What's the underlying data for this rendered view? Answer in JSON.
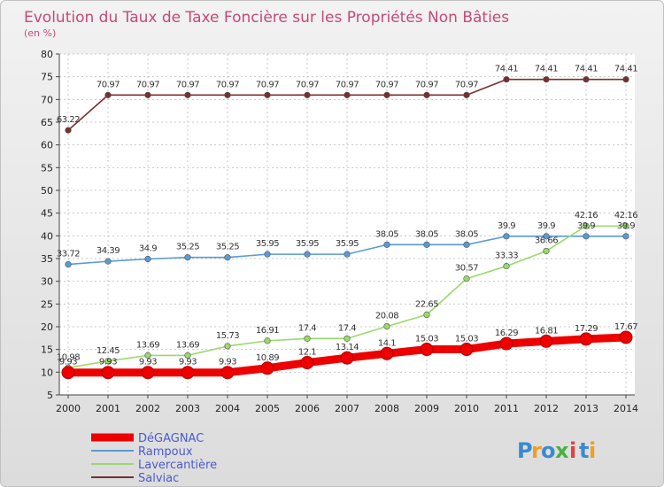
{
  "chart_data": {
    "type": "line",
    "title": "Evolution du Taux de Taxe Foncière sur les Propriétés Non Bâties",
    "subtitle": "(en %)",
    "xlabel": "",
    "ylabel": "",
    "ylim": [
      5,
      80
    ],
    "yticks": [
      "5",
      "10",
      "15",
      "20",
      "25",
      "30",
      "35",
      "40",
      "45",
      "50",
      "55",
      "60",
      "65",
      "70",
      "75",
      "80"
    ],
    "x": [
      "2000",
      "2001",
      "2002",
      "2003",
      "2004",
      "2005",
      "2006",
      "2007",
      "2008",
      "2009",
      "2010",
      "2011",
      "2012",
      "2013",
      "2014"
    ],
    "grid": true,
    "legend_position": "bottom-left",
    "series": [
      {
        "name": "DéGAGNAC",
        "color": "#ee0000",
        "values": [
          9.93,
          9.93,
          9.93,
          9.93,
          9.93,
          10.89,
          12.1,
          13.14,
          14.1,
          15.03,
          15.03,
          16.29,
          16.81,
          17.29,
          17.67
        ],
        "labels": [
          "9.93",
          "9.93",
          "9.93",
          "9.93",
          "9.93",
          "10.89",
          "12.1",
          "13.14",
          "14.1",
          "15.03",
          "15.03",
          "16.29",
          "16.81",
          "17.29",
          "17.67"
        ]
      },
      {
        "name": "Rampoux",
        "color": "#5a9ad5",
        "values": [
          33.72,
          34.39,
          34.9,
          35.25,
          35.25,
          35.95,
          35.95,
          35.95,
          38.05,
          38.05,
          38.05,
          39.9,
          39.9,
          39.9,
          39.9
        ],
        "labels": [
          "33.72",
          "34.39",
          "34.9",
          "35.25",
          "35.25",
          "35.95",
          "35.95",
          "35.95",
          "38.05",
          "38.05",
          "38.05",
          "39.9",
          "39.9",
          "39.9",
          "39.9"
        ]
      },
      {
        "name": "Lavercantière",
        "color": "#99d96a",
        "values": [
          10.98,
          12.45,
          13.69,
          13.69,
          15.73,
          16.91,
          17.4,
          17.4,
          20.08,
          22.65,
          30.57,
          33.33,
          36.66,
          42.16,
          42.16
        ],
        "labels": [
          "10.98",
          "12.45",
          "13.69",
          "13.69",
          "15.73",
          "16.91",
          "17.4",
          "17.4",
          "20.08",
          "22.65",
          "30.57",
          "33.33",
          "36.66",
          "42.16",
          "42.16"
        ]
      },
      {
        "name": "Salviac",
        "color": "#7a2e2e",
        "values": [
          63.22,
          70.97,
          70.97,
          70.97,
          70.97,
          70.97,
          70.97,
          70.97,
          70.97,
          70.97,
          70.97,
          74.41,
          74.41,
          74.41,
          74.41
        ],
        "labels": [
          "63.22",
          "70.97",
          "70.97",
          "70.97",
          "70.97",
          "70.97",
          "70.97",
          "70.97",
          "70.97",
          "70.97",
          "70.97",
          "74.41",
          "74.41",
          "74.41",
          "74.41"
        ]
      }
    ]
  },
  "logo": {
    "letters": [
      "P",
      "r",
      "o",
      "x",
      "i",
      "t",
      "i"
    ],
    "colors": [
      "#3a8ad0",
      "#f0a020",
      "#3a8ad0",
      "#4ab040",
      "#e04040",
      "#3a8ad0",
      "#f0a020"
    ]
  }
}
